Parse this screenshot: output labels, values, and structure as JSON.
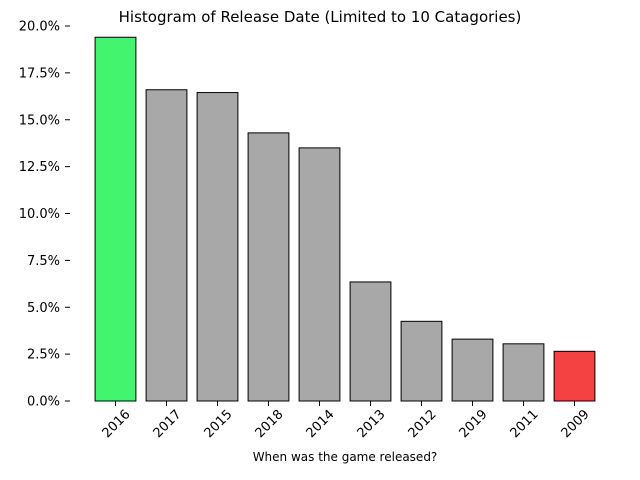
{
  "chart_data": {
    "type": "bar",
    "title": "Histogram of Release Date (Limited to 10 Catagories)",
    "xlabel": "When was the game released?",
    "ylabel": "",
    "categories": [
      "2016",
      "2017",
      "2015",
      "2018",
      "2014",
      "2013",
      "2012",
      "2019",
      "2011",
      "2009"
    ],
    "values": [
      19.4,
      16.6,
      16.45,
      14.3,
      13.5,
      6.35,
      4.25,
      3.3,
      3.05,
      2.65
    ],
    "ylim": [
      0,
      20
    ],
    "yticks": [
      "0.0%",
      "2.5%",
      "5.0%",
      "7.5%",
      "10.0%",
      "12.5%",
      "15.0%",
      "17.5%",
      "20.0%"
    ],
    "colors": {
      "highest": "#42f46e",
      "lowest": "#f44242",
      "default": "#a8a8a8",
      "edge": "#000000"
    },
    "grid": false,
    "legend": "none"
  }
}
